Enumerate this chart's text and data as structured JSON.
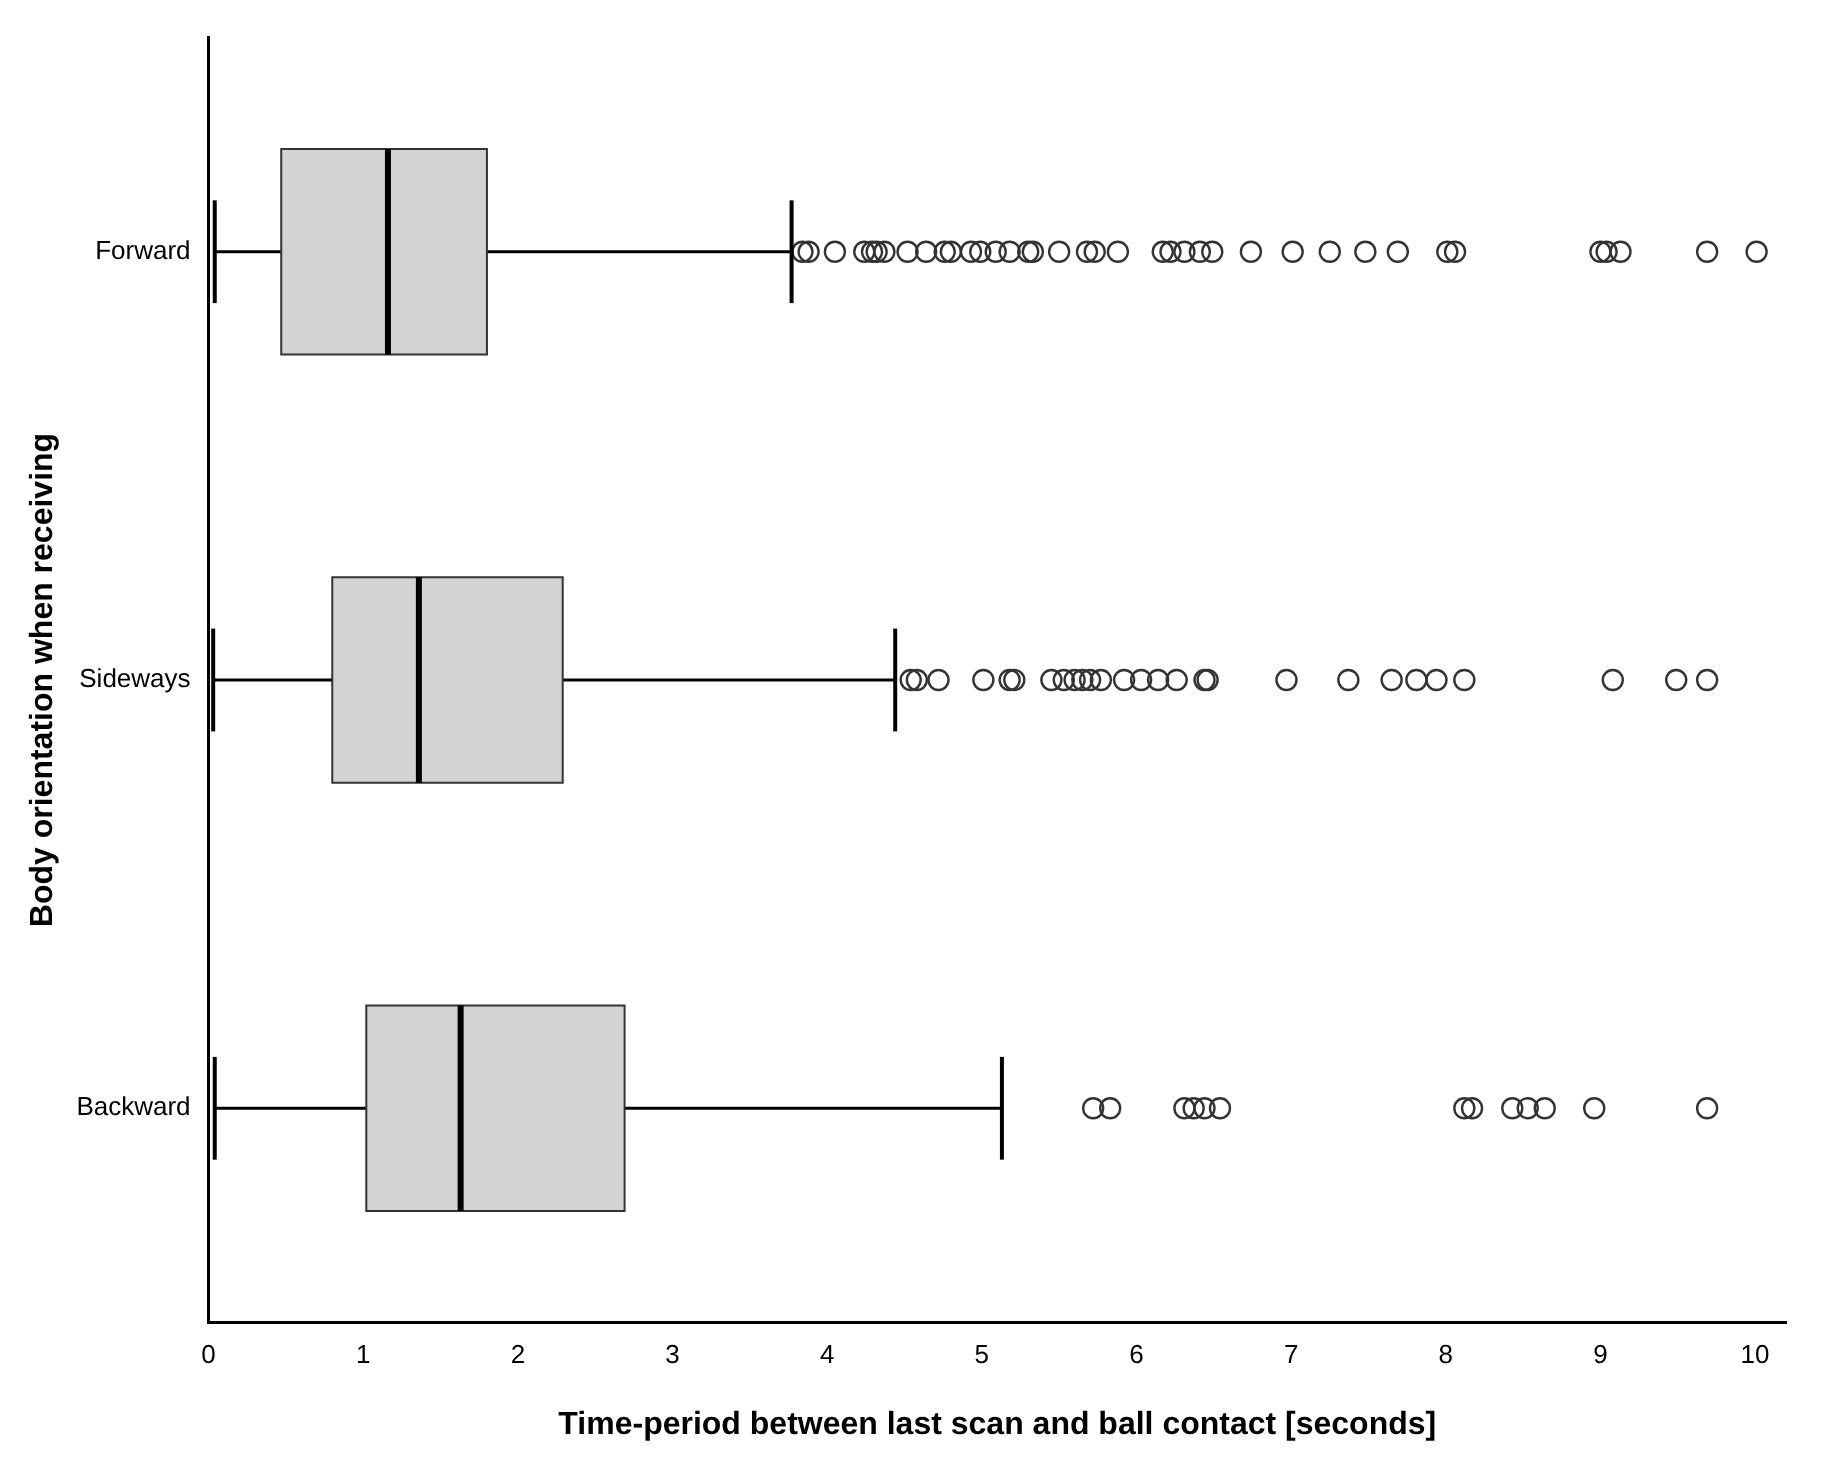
{
  "chart_data": {
    "type": "box",
    "orientation": "horizontal",
    "xlabel": "Time-period between last scan and ball contact [seconds]",
    "ylabel": "Body orientation when receiving",
    "categories": [
      "Forward",
      "Sideways",
      "Backward"
    ],
    "color": "#d3d3d3",
    "marker": "circle",
    "xlim": [
      0,
      10.2
    ],
    "xticks": [
      0,
      1,
      2,
      3,
      4,
      5,
      6,
      7,
      8,
      9,
      10
    ],
    "boxes": [
      {
        "low": 0.04,
        "q1": 0.47,
        "median": 1.16,
        "q3": 1.8,
        "high": 3.77,
        "outliers": [
          3.84,
          3.88,
          4.05,
          4.24,
          4.29,
          4.32,
          4.37,
          4.52,
          4.64,
          4.76,
          4.8,
          4.93,
          4.99,
          5.09,
          5.18,
          5.3,
          5.33,
          5.5,
          5.68,
          5.73,
          5.88,
          6.17,
          6.22,
          6.31,
          6.41,
          6.49,
          6.74,
          7.01,
          7.25,
          7.48,
          7.69,
          8.01,
          8.06,
          9.0,
          9.04,
          9.13,
          9.69,
          10.01
        ]
      },
      {
        "low": 0.03,
        "q1": 0.8,
        "median": 1.36,
        "q3": 2.29,
        "high": 4.44,
        "outliers": [
          4.54,
          4.58,
          4.72,
          5.01,
          5.18,
          5.21,
          5.45,
          5.53,
          5.6,
          5.65,
          5.7,
          5.77,
          5.92,
          6.03,
          6.14,
          6.26,
          6.44,
          6.46,
          6.97,
          7.37,
          7.65,
          7.81,
          7.94,
          8.12,
          9.08,
          9.49,
          9.69
        ]
      },
      {
        "low": 0.04,
        "q1": 1.02,
        "median": 1.63,
        "q3": 2.69,
        "high": 5.13,
        "outliers": [
          5.72,
          5.83,
          6.31,
          6.37,
          6.44,
          6.54,
          8.12,
          8.17,
          8.43,
          8.53,
          8.64,
          8.96,
          9.69
        ]
      }
    ]
  }
}
